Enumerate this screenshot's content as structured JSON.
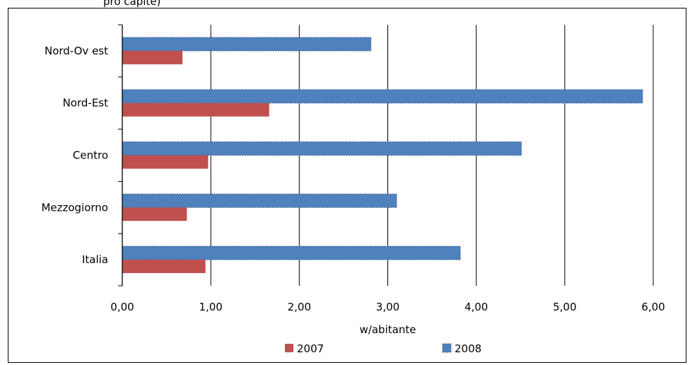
{
  "header": {
    "title_fragment": "pro capite)"
  },
  "chart_data": {
    "type": "bar",
    "orientation": "horizontal",
    "categories": [
      "Nord-Ov est",
      "Nord-Est",
      "Centro",
      "Mezzogiorno",
      "Italia"
    ],
    "series": [
      {
        "name": "2008",
        "values": [
          2.81,
          5.88,
          4.51,
          3.1,
          3.82
        ],
        "color": "#4f81bd"
      },
      {
        "name": "2007",
        "values": [
          0.68,
          1.66,
          0.97,
          0.73,
          0.94
        ],
        "color": "#c0504d"
      }
    ],
    "x_ticks": [
      "0,00",
      "1,00",
      "2,00",
      "3,00",
      "4,00",
      "5,00",
      "6,00"
    ],
    "xlim": [
      0,
      6
    ],
    "xlabel": "w/abitante",
    "grid": true,
    "legend": {
      "position": "bottom",
      "items": [
        "2007",
        "2008"
      ]
    }
  }
}
